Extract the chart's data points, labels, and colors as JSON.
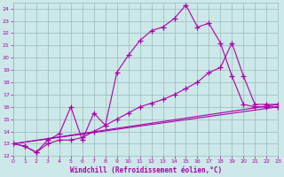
{
  "background_color": "#cce8e8",
  "grid_color": "#99bbbb",
  "line_color": "#aa00aa",
  "xlabel": "Windchill (Refroidissement éolien,°C)",
  "xlim": [
    0,
    23
  ],
  "ylim": [
    12,
    24.5
  ],
  "yticks": [
    12,
    13,
    14,
    15,
    16,
    17,
    18,
    19,
    20,
    21,
    22,
    23,
    24
  ],
  "xticks": [
    0,
    1,
    2,
    3,
    4,
    5,
    6,
    7,
    8,
    9,
    10,
    11,
    12,
    13,
    14,
    15,
    16,
    17,
    18,
    19,
    20,
    21,
    22,
    23
  ],
  "series": [
    {
      "x": [
        0,
        1,
        2,
        3,
        4,
        5,
        6,
        7,
        8,
        9,
        10,
        11,
        12,
        13,
        14,
        15,
        16,
        17,
        18,
        19,
        20,
        21,
        22,
        23
      ],
      "y": [
        13,
        12.8,
        12.3,
        13.3,
        13.8,
        16.0,
        13.3,
        15.5,
        14.5,
        18.8,
        20.2,
        21.4,
        22.2,
        22.5,
        23.2,
        24.3,
        22.5,
        22.8,
        21.2,
        18.5,
        16.2,
        16.0,
        16.0,
        16.0
      ]
    },
    {
      "x": [
        0,
        1,
        2,
        3,
        4,
        5,
        6,
        7,
        8,
        9,
        10,
        11,
        12,
        13,
        14,
        15,
        16,
        17,
        18,
        19,
        20,
        21,
        22,
        23
      ],
      "y": [
        13,
        12.8,
        12.3,
        13.0,
        13.3,
        13.3,
        13.5,
        14.0,
        14.5,
        15.0,
        15.5,
        16.0,
        16.3,
        16.6,
        17.0,
        17.5,
        18.0,
        18.8,
        19.2,
        21.2,
        18.5,
        16.2,
        16.2,
        16.2
      ]
    },
    {
      "x": [
        0,
        23
      ],
      "y": [
        13,
        16.0
      ]
    },
    {
      "x": [
        0,
        23
      ],
      "y": [
        13,
        16.2
      ]
    }
  ]
}
